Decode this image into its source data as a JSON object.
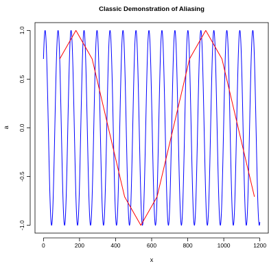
{
  "chart_data": {
    "type": "line",
    "title": "Classic Demonstration of Aliasing",
    "xlabel": "x",
    "ylabel": "a",
    "xlim": [
      -47,
      1247
    ],
    "ylim": [
      -1.08,
      1.08
    ],
    "x_ticks": [
      0,
      200,
      400,
      600,
      800,
      1000,
      1200
    ],
    "y_ticks": [
      -1.0,
      -0.5,
      0.0,
      0.5,
      1.0
    ],
    "x_tick_labels": [
      "0",
      "200",
      "400",
      "600",
      "800",
      "1000",
      "1200"
    ],
    "y_tick_labels": [
      "-1.0",
      "-0.5",
      "0.0",
      "0.5",
      "1.0"
    ],
    "grid": false,
    "series": [
      {
        "color": "#0000ff",
        "kind": "sine",
        "x_range": [
          0,
          1200
        ],
        "function": "sin(2*pi*x/72 + pi/4)",
        "period": 72,
        "phase_deg": 45,
        "amplitude": 1.0,
        "sample_step": 1
      },
      {
        "color": "#ff0000",
        "kind": "polyline",
        "x": [
          90,
          180,
          270,
          360,
          450,
          540,
          630,
          720,
          810,
          900,
          990,
          1080,
          1170
        ],
        "y": [
          0.7071,
          1.0,
          0.7071,
          0.0,
          -0.7071,
          -1.0,
          -0.7071,
          0.0,
          0.7071,
          1.0,
          0.7071,
          0.0,
          -0.7071
        ]
      }
    ]
  }
}
